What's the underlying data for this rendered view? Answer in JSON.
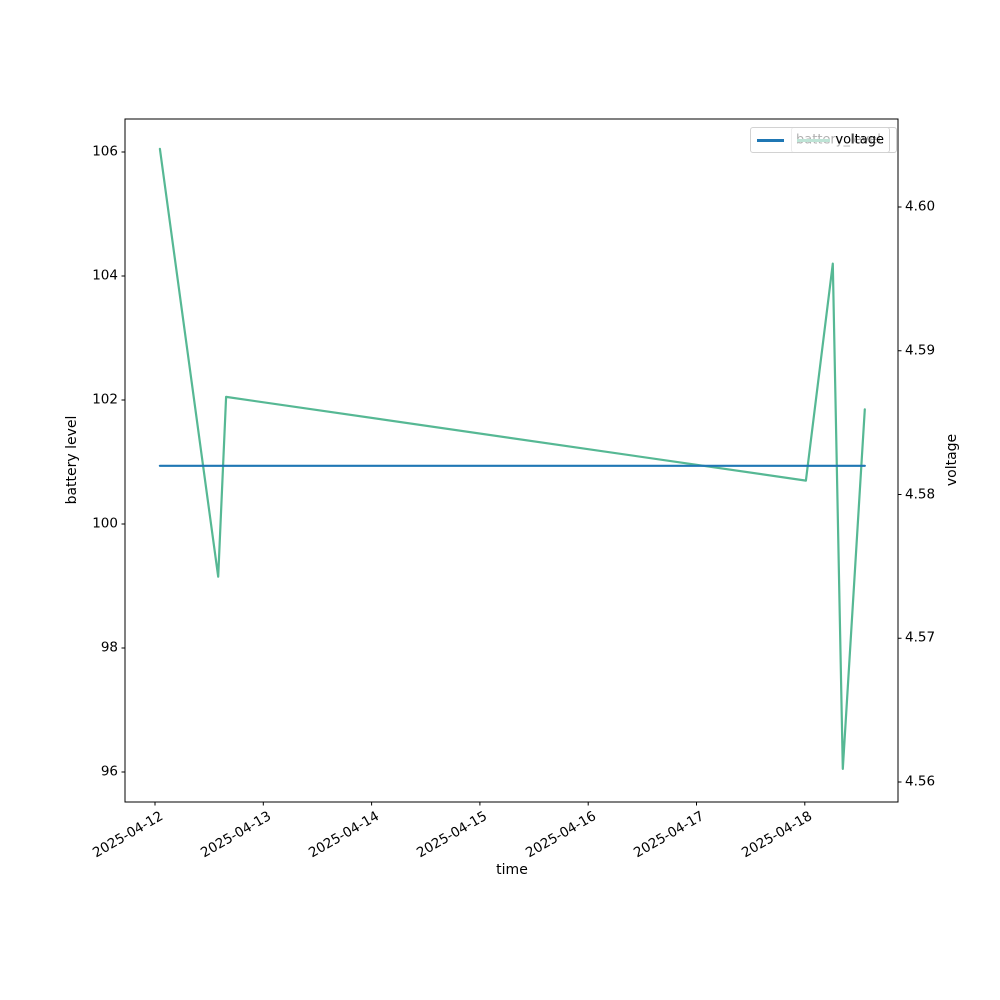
{
  "chart_data": {
    "type": "line",
    "title": "",
    "xlabel": "time",
    "ylabel_left": "battery level",
    "ylabel_right": "voltage",
    "x_tick_labels": [
      "2025-04-12",
      "2025-04-13",
      "2025-04-14",
      "2025-04-15",
      "2025-04-16",
      "2025-04-17",
      "2025-04-18"
    ],
    "left_ticks": [
      106,
      104,
      102,
      100,
      98,
      96
    ],
    "right_ticks": [
      "4.60",
      "4.59",
      "4.58",
      "4.57",
      "4.56"
    ],
    "left_ylim": [
      95.55,
      106.52
    ],
    "right_ylim": [
      4.5587,
      4.6061
    ],
    "grid": false,
    "legend_position": "upper right",
    "series": [
      {
        "name": "battery_level",
        "axis": "left",
        "color": "#56b894",
        "points": [
          [
            "2025-04-12T01:05:00",
            106.05
          ],
          [
            "2025-04-12T14:00:00",
            99.15
          ],
          [
            "2025-04-12T15:45:00",
            102.05
          ],
          [
            "2025-04-18T00:15:00",
            100.7
          ],
          [
            "2025-04-18T06:12:00",
            104.2
          ],
          [
            "2025-04-18T08:25:00",
            96.05
          ],
          [
            "2025-04-18T13:18:00",
            101.85
          ]
        ]
      },
      {
        "name": "voltage",
        "axis": "right",
        "color": "#1f77b4",
        "points": [
          [
            "2025-04-12T01:05:00",
            4.582
          ],
          [
            "2025-04-18T13:18:00",
            4.582
          ]
        ]
      }
    ],
    "legend": {
      "entries": [
        {
          "label": "battery_level",
          "color": "#56b894"
        },
        {
          "label": "voltage",
          "color": "#1f77b4"
        }
      ]
    }
  }
}
